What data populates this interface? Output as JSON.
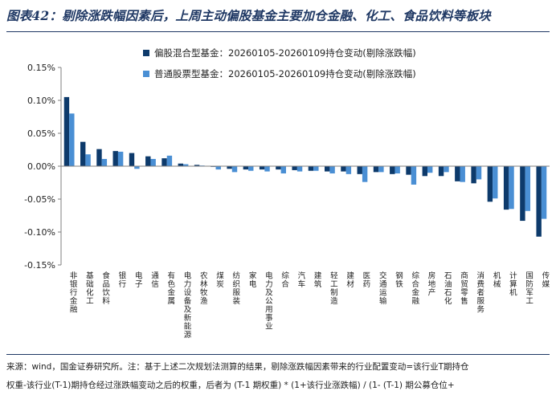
{
  "title": "图表42：剔除涨跌幅因素后，上周主动偏股基金主要加仓金融、化工、食品饮料等板块",
  "source_lines": [
    "来源：wind，国金证券研究所。注：基于上述二次规划法测算的结果，剔除涨跌幅因素带来的行业配置变动=该行业T期持仓",
    "权重-该行业(T-1)期持仓经过涨跌幅变动之后的权重，后者为 (T-1 期权重) * (1+该行业涨跌幅) / (1- (T-1) 期公募仓位+"
  ],
  "colors": {
    "series1": "#0d3a6b",
    "series2": "#4a8fd4",
    "axis": "#7f7f7f",
    "title": "#1f3864"
  },
  "chart_data": {
    "type": "bar",
    "title": "",
    "xlabel": "",
    "ylabel": "",
    "ylim": [
      -0.0015,
      0.0015
    ],
    "yticks": [
      "0.15%",
      "0.10%",
      "0.05%",
      "0.00%",
      "-0.05%",
      "-0.10%",
      "-0.15%"
    ],
    "ytick_values": [
      0.0015,
      0.001,
      0.0005,
      0,
      -0.0005,
      -0.001,
      -0.0015
    ],
    "legend_position": "top",
    "categories": [
      "非银行金融",
      "基础化工",
      "食品饮料",
      "银行",
      "电子",
      "通信",
      "有色金属",
      "电力设备及新能源",
      "农林牧渔",
      "煤炭",
      "纺织服装",
      "家电",
      "电力及公用事业",
      "综合",
      "汽车",
      "建筑",
      "轻工制造",
      "建材",
      "医药",
      "交通运输",
      "钢铁",
      "综合金融",
      "房地产",
      "石油石化",
      "商贸零售",
      "消费者服务",
      "机械",
      "计算机",
      "国防军工",
      "传媒"
    ],
    "series": [
      {
        "name": "偏股混合型基金：20260105-20260109持仓变动(剔除涨跌幅)",
        "values": [
          0.00105,
          0.00037,
          0.00026,
          0.00023,
          0.0002,
          0.00015,
          0.00012,
          4e-05,
          2e-05,
          -1e-05,
          -4e-05,
          -5e-05,
          -5e-05,
          -5e-05,
          -6e-05,
          -7e-05,
          -8e-05,
          -8e-05,
          -0.00012,
          -9e-05,
          -0.00012,
          -0.00013,
          -0.00015,
          -0.00015,
          -0.00023,
          -0.00026,
          -0.00054,
          -0.00066,
          -0.00083,
          -0.00107
        ]
      },
      {
        "name": "普通股票型基金：20260105-20260109持仓变动(剔除涨跌幅)",
        "values": [
          0.0008,
          0.00018,
          0.00011,
          0.00022,
          -4e-05,
          0.00011,
          0.00016,
          3e-05,
          1e-05,
          -5e-05,
          -9e-05,
          -7e-05,
          -8e-05,
          -0.00011,
          -8e-05,
          -7e-05,
          -0.00011,
          -0.00012,
          -0.00024,
          -9e-05,
          -0.00011,
          -0.00028,
          -0.0001,
          -9e-05,
          -0.00024,
          -0.0002,
          -0.00049,
          -0.00065,
          -0.00068,
          -0.0008
        ]
      }
    ]
  }
}
